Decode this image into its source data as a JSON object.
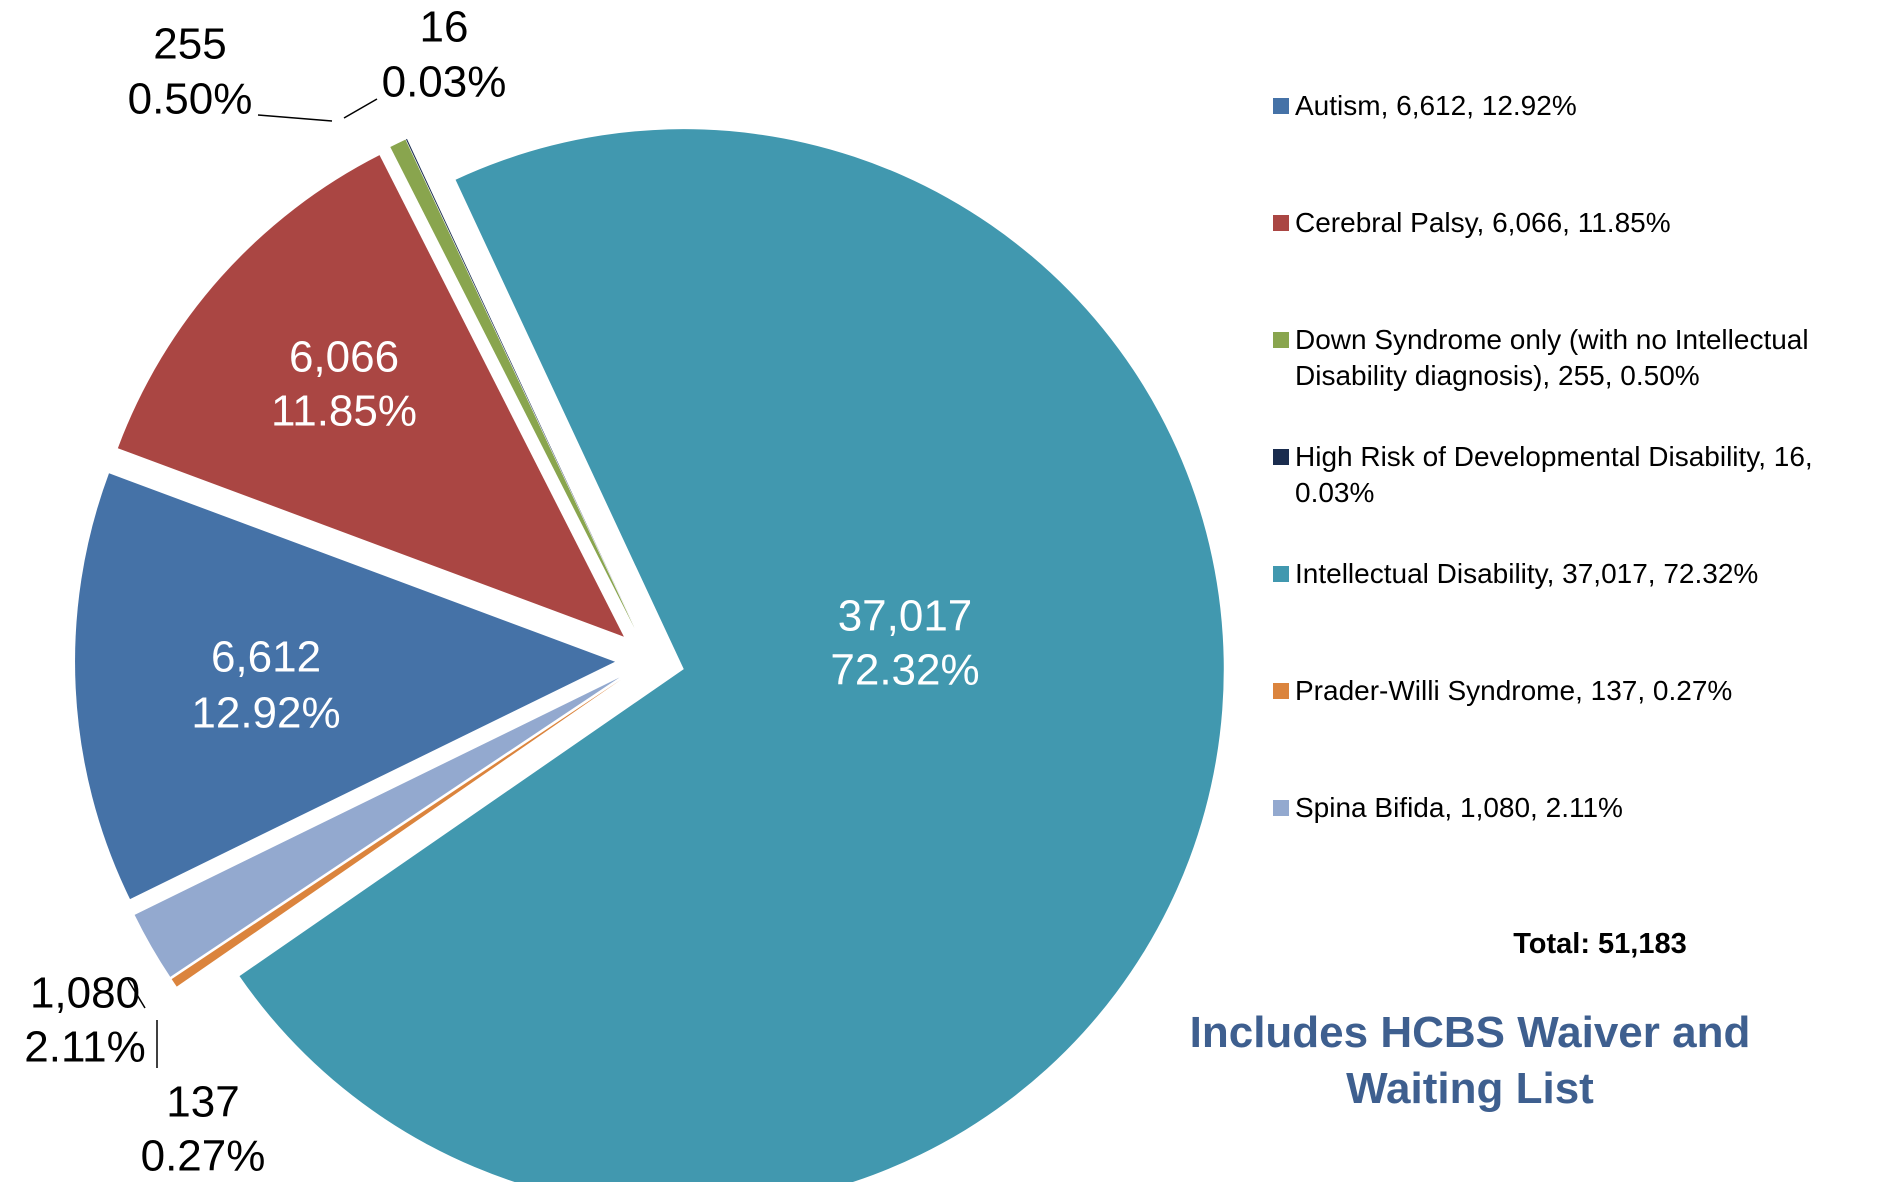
{
  "chart_data": {
    "type": "pie",
    "categories": [
      "Autism",
      "Cerebral Palsy",
      "Down Syndrome only (with no Intellectual Disability diagnosis)",
      "High Risk of Developmental Disability",
      "Intellectual Disability",
      "Prader-Willi Syndrome",
      "Spina Bifida"
    ],
    "values": [
      6612,
      6066,
      255,
      16,
      37017,
      137,
      1080
    ],
    "value_labels": [
      "6,612",
      "6,066",
      "255",
      "16",
      "37,017",
      "137",
      "1,080"
    ],
    "percent_labels": [
      "12.92%",
      "11.85%",
      "0.50%",
      "0.03%",
      "72.32%",
      "0.27%",
      "2.11%"
    ],
    "legend_labels": [
      "Autism, 6,612, 12.92%",
      "Cerebral Palsy, 6,066, 11.85%",
      "Down Syndrome only (with no Intellectual Disability diagnosis), 255, 0.50%",
      "High Risk of Developmental Disability, 16, 0.03%",
      "Intellectual Disability, 37,017, 72.32%",
      "Prader-Willi Syndrome, 137, 0.27%",
      "Spina Bifida, 1,080, 2.11%"
    ],
    "colors": [
      "#4572a7",
      "#aa4643",
      "#89a54e",
      "#1a2c4e",
      "#4198af",
      "#db843d",
      "#93a9cf"
    ],
    "legend": "right",
    "total_label": "Total: 51,183",
    "note": "Includes HCBS Waiver and Waiting List"
  }
}
